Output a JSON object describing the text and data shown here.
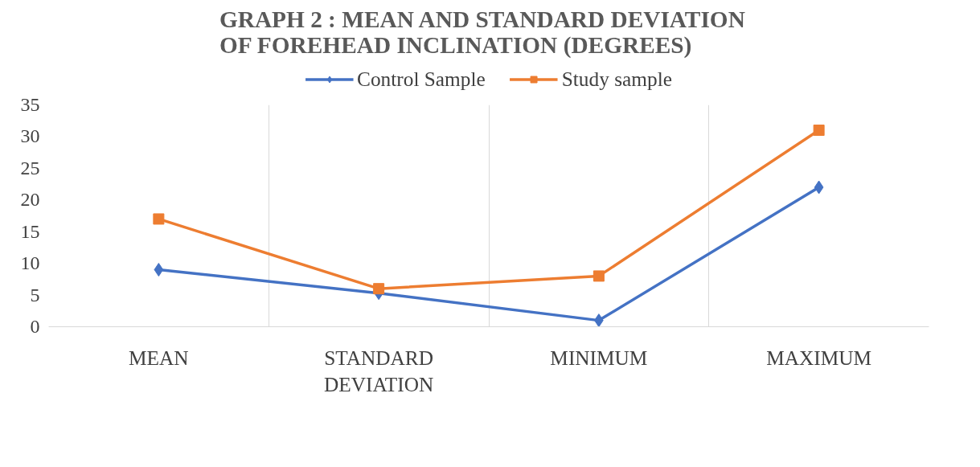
{
  "chart_data": {
    "type": "line",
    "title": "GRAPH 2 :   MEAN AND STANDARD DEVIATION OF FOREHEAD INCLINATION (DEGREES)",
    "categories": [
      "MEAN",
      "STANDARD DEVIATION",
      "MINIMUM",
      "MAXIMUM"
    ],
    "series": [
      {
        "name": "Control Sample",
        "color": "#4472c4",
        "values": [
          9,
          5.3,
          1,
          22
        ],
        "marker": "diamond"
      },
      {
        "name": "Study sample",
        "color": "#ed7d31",
        "values": [
          17,
          6,
          8,
          31
        ],
        "marker": "square"
      }
    ],
    "ylim": [
      0,
      35
    ],
    "yticks": [
      0,
      5,
      10,
      15,
      20,
      25,
      30,
      35
    ],
    "grid": "x",
    "legend": "top",
    "line_style": "solid"
  }
}
